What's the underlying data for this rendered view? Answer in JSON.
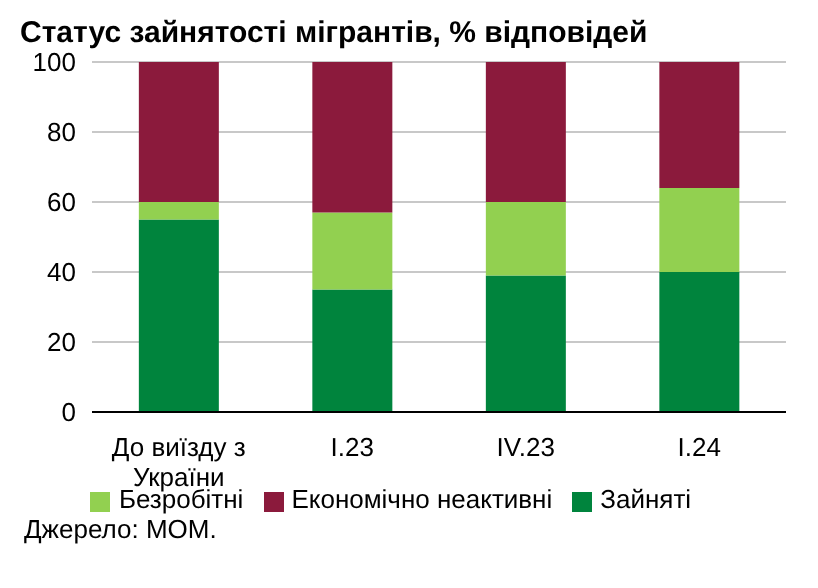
{
  "chart_data": {
    "type": "bar",
    "title": "Статус зайнятості мігрантів, % відповідей",
    "categories": [
      "До виїзду з України",
      "I.23",
      "IV.23",
      "I.24"
    ],
    "series": [
      {
        "name": "Зайняті",
        "color": "#00843d",
        "values": [
          55,
          35,
          39,
          40
        ]
      },
      {
        "name": "Безробітні",
        "color": "#92d050",
        "values": [
          5,
          22,
          21,
          24
        ]
      },
      {
        "name": "Економічно неактивні",
        "color": "#8b1a3c",
        "values": [
          40,
          43,
          40,
          36
        ]
      }
    ],
    "stacked": true,
    "ylim": [
      0,
      100
    ],
    "yticks": [
      0,
      20,
      40,
      60,
      80,
      100
    ],
    "grid": "y",
    "legend": "bottom",
    "annotations": [
      "Джерело: МОМ."
    ]
  }
}
